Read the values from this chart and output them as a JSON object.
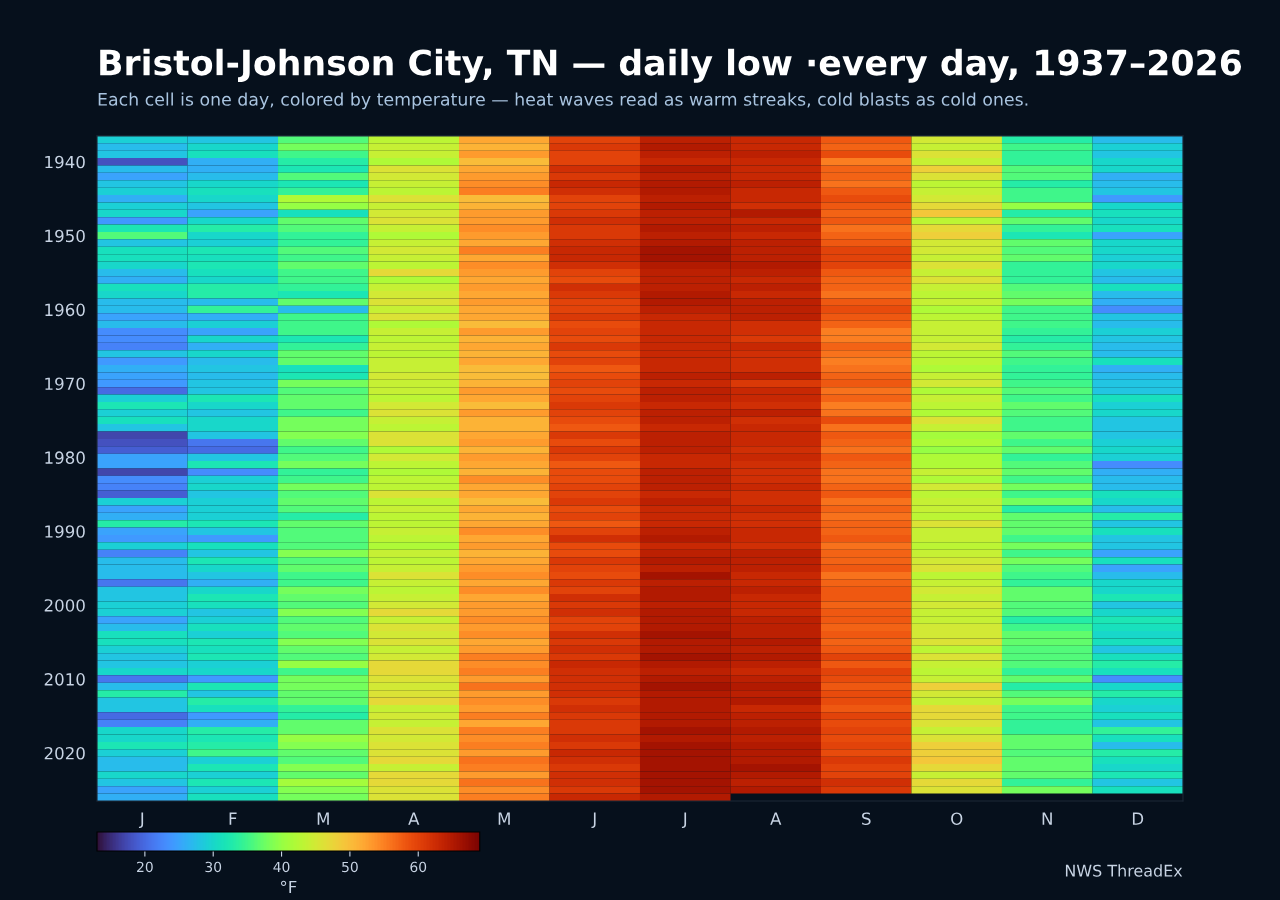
{
  "chart_data": {
    "type": "heatmap",
    "title": "Bristol-Johnson City, TN — daily low ·every day, 1937–2026",
    "subtitle": "Each cell is one day, colored by temperature — heat waves read as warm streaks, cold blasts as cold ones.",
    "clabel": "°F",
    "clim": [
      13,
      69
    ],
    "cticks": [
      20,
      30,
      40,
      50,
      60
    ],
    "annotations": [
      "NWS ThreadEx"
    ],
    "categories": [
      "J",
      "F",
      "M",
      "A",
      "M",
      "J",
      "J",
      "A",
      "S",
      "O",
      "N",
      "D"
    ],
    "y_categories": [
      null,
      null,
      null,
      "1940",
      null,
      null,
      null,
      null,
      null,
      null,
      null,
      null,
      null,
      "1950",
      null,
      null,
      null,
      null,
      null,
      null,
      null,
      null,
      null,
      "1960",
      null,
      null,
      null,
      null,
      null,
      null,
      null,
      null,
      null,
      "1970",
      null,
      null,
      null,
      null,
      null,
      null,
      null,
      null,
      null,
      "1980",
      null,
      null,
      null,
      null,
      null,
      null,
      null,
      null,
      null,
      "1990",
      null,
      null,
      null,
      null,
      null,
      null,
      null,
      null,
      null,
      "2000",
      null,
      null,
      null,
      null,
      null,
      null,
      null,
      null,
      null,
      "2010",
      null,
      null,
      null,
      null,
      null,
      null,
      null,
      null,
      null,
      "2020",
      null,
      null,
      null,
      null,
      null,
      null
    ],
    "cells": [
      [
        29,
        28,
        36,
        43,
        52,
        60,
        64,
        63,
        58,
        45,
        33,
        27
      ],
      [
        27,
        30,
        38,
        44,
        51,
        61,
        65,
        63,
        57,
        44,
        35,
        29
      ],
      [
        28,
        31,
        35,
        44,
        53,
        60,
        64,
        64,
        59,
        46,
        34,
        28
      ],
      [
        18,
        26,
        33,
        42,
        50,
        60,
        63,
        63,
        55,
        44,
        34,
        30
      ],
      [
        27,
        26,
        32,
        46,
        52,
        62,
        65,
        63,
        57,
        48,
        36,
        30
      ],
      [
        25,
        27,
        36,
        45,
        53,
        61,
        64,
        63,
        57,
        46,
        36,
        26
      ],
      [
        28,
        30,
        32,
        44,
        54,
        63,
        65,
        64,
        56,
        43,
        33,
        27
      ],
      [
        29,
        31,
        34,
        43,
        55,
        62,
        65,
        63,
        58,
        44,
        35,
        28
      ],
      [
        26,
        30,
        42,
        46,
        50,
        60,
        64,
        63,
        59,
        45,
        35,
        24
      ],
      [
        29,
        28,
        40,
        44,
        51,
        60,
        65,
        62,
        58,
        47,
        40,
        30
      ],
      [
        30,
        25,
        31,
        45,
        53,
        61,
        64,
        65,
        57,
        49,
        33,
        31
      ],
      [
        24,
        30,
        37,
        46,
        53,
        62,
        64,
        63,
        58,
        43,
        37,
        30
      ],
      [
        32,
        33,
        36,
        44,
        54,
        61,
        65,
        64,
        56,
        47,
        34,
        31
      ],
      [
        36,
        30,
        34,
        42,
        53,
        61,
        64,
        63,
        57,
        48,
        32,
        25
      ],
      [
        28,
        29,
        34,
        44,
        52,
        62,
        65,
        64,
        58,
        45,
        37,
        30
      ],
      [
        31,
        32,
        36,
        45,
        55,
        63,
        66,
        64,
        60,
        45,
        36,
        30
      ],
      [
        31,
        31,
        35,
        44,
        52,
        63,
        66,
        64,
        60,
        44,
        37,
        29
      ],
      [
        30,
        32,
        37,
        43,
        54,
        62,
        65,
        65,
        60,
        46,
        34,
        30
      ],
      [
        27,
        31,
        35,
        47,
        53,
        60,
        64,
        64,
        58,
        44,
        34,
        28
      ],
      [
        26,
        30,
        35,
        42,
        52,
        59,
        64,
        63,
        57,
        46,
        34,
        27
      ],
      [
        31,
        33,
        34,
        44,
        53,
        62,
        64,
        64,
        57,
        44,
        36,
        31
      ],
      [
        30,
        33,
        32,
        45,
        52,
        61,
        65,
        63,
        56,
        43,
        37,
        27
      ],
      [
        27,
        27,
        37,
        46,
        53,
        60,
        65,
        64,
        58,
        44,
        38,
        26
      ],
      [
        27,
        34,
        27,
        44,
        52,
        60,
        64,
        64,
        59,
        42,
        35,
        23
      ],
      [
        25,
        26,
        35,
        46,
        52,
        61,
        63,
        64,
        58,
        43,
        35,
        28
      ],
      [
        27,
        29,
        35,
        42,
        50,
        59,
        63,
        62,
        57,
        44,
        35,
        27
      ],
      [
        23,
        25,
        35,
        44,
        53,
        60,
        63,
        62,
        55,
        44,
        34,
        29
      ],
      [
        23,
        30,
        32,
        43,
        51,
        59,
        63,
        61,
        55,
        44,
        33,
        28
      ],
      [
        22,
        26,
        34,
        44,
        52,
        61,
        63,
        63,
        57,
        45,
        34,
        27
      ],
      [
        28,
        30,
        37,
        43,
        51,
        59,
        63,
        62,
        56,
        43,
        36,
        27
      ],
      [
        24,
        27,
        37,
        44,
        52,
        60,
        63,
        62,
        55,
        43,
        35,
        31
      ],
      [
        26,
        28,
        31,
        44,
        50,
        58,
        63,
        62,
        56,
        42,
        34,
        26
      ],
      [
        25,
        27,
        32,
        45,
        50,
        59,
        64,
        64,
        57,
        44,
        34,
        27
      ],
      [
        24,
        28,
        38,
        44,
        51,
        60,
        63,
        61,
        58,
        45,
        35,
        28
      ],
      [
        20,
        28,
        36,
        44,
        53,
        59,
        64,
        63,
        56,
        42,
        36,
        28
      ],
      [
        29,
        32,
        37,
        43,
        52,
        60,
        64,
        63,
        57,
        44,
        35,
        31
      ],
      [
        32,
        30,
        37,
        45,
        50,
        61,
        63,
        62,
        55,
        43,
        37,
        29
      ],
      [
        29,
        28,
        35,
        46,
        53,
        60,
        64,
        64,
        56,
        42,
        36,
        30
      ],
      [
        31,
        30,
        38,
        44,
        51,
        59,
        64,
        62,
        59,
        46,
        35,
        28
      ],
      [
        28,
        30,
        38,
        43,
        51,
        58,
        63,
        63,
        56,
        44,
        35,
        28
      ],
      [
        17,
        28,
        39,
        46,
        52,
        61,
        64,
        63,
        58,
        41,
        37,
        28
      ],
      [
        18,
        21,
        37,
        46,
        53,
        59,
        64,
        63,
        57,
        42,
        35,
        29
      ],
      [
        19,
        20,
        35,
        42,
        51,
        61,
        64,
        62,
        56,
        40,
        37,
        30
      ],
      [
        25,
        28,
        36,
        45,
        53,
        60,
        63,
        63,
        58,
        42,
        34,
        29
      ],
      [
        25,
        32,
        38,
        43,
        52,
        58,
        63,
        62,
        57,
        42,
        36,
        23
      ],
      [
        17,
        23,
        34,
        42,
        51,
        59,
        64,
        62,
        56,
        44,
        37,
        26
      ],
      [
        23,
        29,
        35,
        43,
        54,
        59,
        64,
        62,
        56,
        42,
        35,
        27
      ],
      [
        22,
        30,
        38,
        43,
        52,
        60,
        64,
        63,
        57,
        45,
        38,
        27
      ],
      [
        19,
        28,
        36,
        46,
        52,
        60,
        63,
        62,
        58,
        43,
        35,
        31
      ],
      [
        29,
        29,
        37,
        43,
        50,
        61,
        64,
        62,
        56,
        44,
        38,
        30
      ],
      [
        25,
        29,
        36,
        44,
        52,
        59,
        63,
        63,
        57,
        44,
        33,
        27
      ],
      [
        26,
        29,
        33,
        43,
        51,
        60,
        63,
        62,
        56,
        43,
        37,
        33
      ],
      [
        33,
        32,
        37,
        43,
        52,
        58,
        63,
        62,
        57,
        46,
        37,
        28
      ],
      [
        25,
        28,
        36,
        44,
        54,
        60,
        64,
        63,
        57,
        44,
        37,
        31
      ],
      [
        24,
        24,
        36,
        43,
        52,
        62,
        65,
        63,
        58,
        44,
        35,
        28
      ],
      [
        29,
        31,
        36,
        42,
        53,
        59,
        63,
        62,
        56,
        43,
        38,
        28
      ],
      [
        22,
        28,
        39,
        44,
        51,
        59,
        64,
        64,
        57,
        44,
        35,
        25
      ],
      [
        27,
        32,
        36,
        43,
        52,
        61,
        65,
        64,
        57,
        45,
        38,
        31
      ],
      [
        27,
        30,
        37,
        44,
        53,
        60,
        64,
        64,
        58,
        46,
        36,
        25
      ],
      [
        27,
        28,
        35,
        46,
        54,
        59,
        66,
        63,
        56,
        43,
        35,
        27
      ],
      [
        21,
        26,
        35,
        44,
        52,
        61,
        64,
        63,
        57,
        44,
        34,
        30
      ],
      [
        28,
        30,
        38,
        43,
        54,
        60,
        65,
        64,
        58,
        45,
        37,
        30
      ],
      [
        28,
        32,
        37,
        44,
        52,
        62,
        65,
        63,
        58,
        44,
        37,
        32
      ],
      [
        29,
        31,
        36,
        45,
        53,
        61,
        64,
        63,
        57,
        45,
        36,
        28
      ],
      [
        29,
        28,
        39,
        47,
        53,
        62,
        65,
        63,
        58,
        44,
        36,
        30
      ],
      [
        25,
        29,
        36,
        44,
        54,
        60,
        65,
        64,
        58,
        44,
        33,
        32
      ],
      [
        27,
        31,
        37,
        46,
        53,
        60,
        65,
        64,
        57,
        45,
        35,
        31
      ],
      [
        31,
        29,
        36,
        45,
        54,
        62,
        66,
        64,
        58,
        45,
        37,
        30
      ],
      [
        31,
        32,
        39,
        46,
        52,
        61,
        65,
        65,
        57,
        46,
        37,
        31
      ],
      [
        29,
        31,
        37,
        44,
        53,
        62,
        65,
        64,
        58,
        43,
        36,
        28
      ],
      [
        28,
        32,
        36,
        45,
        55,
        61,
        66,
        65,
        60,
        46,
        36,
        31
      ],
      [
        28,
        29,
        40,
        47,
        54,
        63,
        65,
        64,
        58,
        44,
        36,
        33
      ],
      [
        30,
        30,
        35,
        47,
        55,
        62,
        64,
        63,
        60,
        43,
        34,
        31
      ],
      [
        21,
        24,
        38,
        46,
        53,
        62,
        65,
        64,
        59,
        44,
        37,
        23
      ],
      [
        27,
        32,
        38,
        45,
        56,
        62,
        66,
        65,
        58,
        48,
        33,
        30
      ],
      [
        33,
        28,
        37,
        46,
        53,
        62,
        65,
        64,
        59,
        45,
        36,
        33
      ],
      [
        28,
        33,
        37,
        47,
        54,
        61,
        65,
        65,
        59,
        44,
        38,
        30
      ],
      [
        28,
        31,
        34,
        44,
        53,
        62,
        65,
        63,
        58,
        47,
        35,
        29
      ],
      [
        20,
        24,
        33,
        45,
        55,
        61,
        65,
        64,
        60,
        47,
        35,
        31
      ],
      [
        22,
        26,
        37,
        44,
        52,
        61,
        65,
        64,
        59,
        46,
        34,
        28
      ],
      [
        30,
        33,
        37,
        46,
        55,
        61,
        66,
        65,
        60,
        44,
        34,
        34
      ],
      [
        30,
        32,
        40,
        45,
        54,
        62,
        65,
        64,
        59,
        46,
        37,
        31
      ],
      [
        32,
        33,
        39,
        46,
        55,
        61,
        66,
        65,
        60,
        48,
        37,
        27
      ],
      [
        29,
        35,
        37,
        46,
        53,
        63,
        66,
        65,
        59,
        48,
        36,
        33
      ],
      [
        27,
        29,
        36,
        47,
        56,
        62,
        66,
        65,
        61,
        49,
        37,
        31
      ],
      [
        27,
        32,
        39,
        44,
        55,
        61,
        66,
        66,
        60,
        47,
        37,
        30
      ],
      [
        30,
        29,
        37,
        47,
        53,
        62,
        66,
        65,
        60,
        44,
        37,
        32
      ],
      [
        28,
        32,
        41,
        47,
        56,
        62,
        66,
        64,
        62,
        47,
        34,
        28
      ],
      [
        25,
        29,
        39,
        46,
        54,
        61,
        66,
        65,
        61,
        46,
        38,
        31
      ],
      [
        26,
        31,
        38,
        46,
        55,
        63,
        65,
        null,
        null,
        null,
        null,
        null
      ]
    ]
  }
}
